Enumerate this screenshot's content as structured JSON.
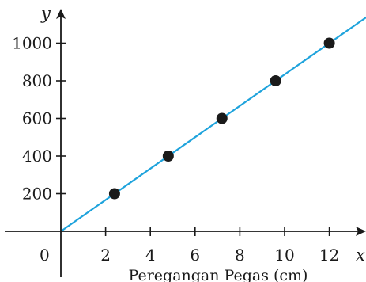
{
  "chart_data": {
    "type": "scatter",
    "title": "",
    "xlabel": "x",
    "ylabel": "y",
    "x_caption": "Peregangan Pegas (cm)",
    "origin_label": "0",
    "x_ticks": [
      2,
      4,
      6,
      8,
      10,
      12
    ],
    "y_ticks": [
      200,
      400,
      600,
      800,
      1000
    ],
    "xlim": [
      0,
      14
    ],
    "ylim": [
      0,
      1100
    ],
    "grid": false,
    "legend": "none",
    "series": [
      {
        "x": [
          2.4,
          4.8,
          7.2,
          9.6,
          12
        ],
        "y": [
          200,
          400,
          600,
          800,
          1000
        ]
      }
    ],
    "trend_line": {
      "x": [
        0,
        14
      ],
      "y": [
        0,
        1166.7
      ]
    },
    "colors": {
      "points": "#1a1a1a",
      "line": "#1ea3dc",
      "axes": "#1a1a1a"
    }
  }
}
